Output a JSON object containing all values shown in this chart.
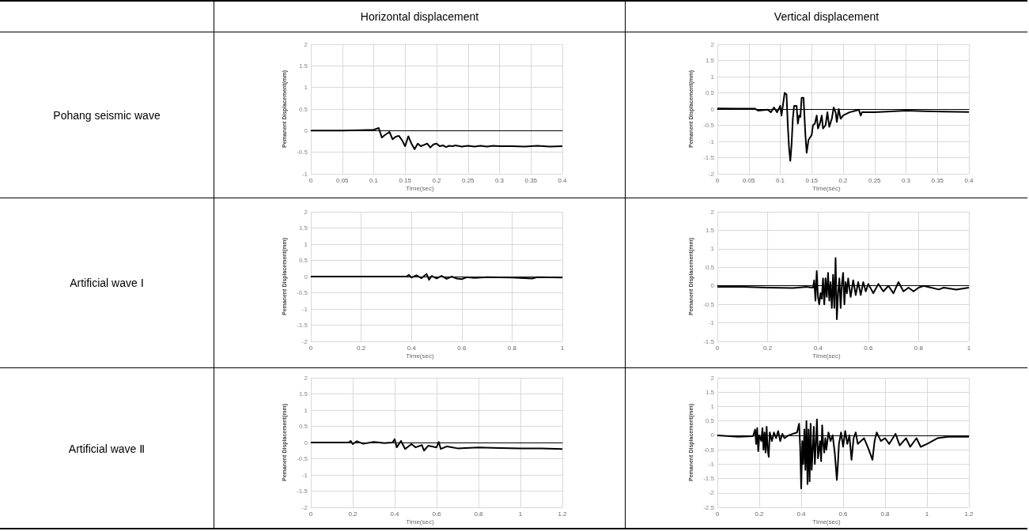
{
  "chart_data": [
    {
      "type": "other",
      "annotations": [
        "Horizontal displacement",
        "Vertical displacement",
        "Pohang seismic wave",
        "Artificial wave Ⅰ",
        "Artificial wave Ⅱ"
      ]
    },
    {
      "type": "line",
      "xlabel": "Time(sec)",
      "ylabel": "Pemanent Displacement(mm)",
      "color": "#000000",
      "grid": true,
      "xlim": [
        0,
        0.4
      ],
      "xticks": [
        0,
        0.05,
        0.1,
        0.15,
        0.2,
        0.25,
        0.3,
        0.35,
        0.4
      ],
      "ylim": [
        -1,
        2
      ],
      "yticks": [
        -1,
        -0.5,
        0,
        0.5,
        1,
        1.5,
        2
      ],
      "x": [
        0,
        0.02,
        0.05,
        0.08,
        0.1,
        0.108,
        0.113,
        0.118,
        0.125,
        0.13,
        0.135,
        0.14,
        0.145,
        0.15,
        0.155,
        0.16,
        0.165,
        0.17,
        0.175,
        0.18,
        0.185,
        0.19,
        0.195,
        0.2,
        0.205,
        0.21,
        0.215,
        0.22,
        0.225,
        0.23,
        0.24,
        0.25,
        0.26,
        0.27,
        0.28,
        0.29,
        0.3,
        0.32,
        0.34,
        0.36,
        0.38,
        0.4
      ],
      "values": [
        0,
        0,
        0,
        0.01,
        0.02,
        0.06,
        -0.16,
        -0.1,
        -0.03,
        -0.2,
        -0.14,
        -0.12,
        -0.22,
        -0.36,
        -0.13,
        -0.3,
        -0.43,
        -0.3,
        -0.36,
        -0.33,
        -0.3,
        -0.39,
        -0.32,
        -0.3,
        -0.36,
        -0.34,
        -0.38,
        -0.35,
        -0.36,
        -0.34,
        -0.37,
        -0.35,
        -0.37,
        -0.35,
        -0.37,
        -0.35,
        -0.36,
        -0.36,
        -0.37,
        -0.35,
        -0.37,
        -0.36
      ]
    },
    {
      "type": "line",
      "xlabel": "Time(sec)",
      "ylabel": "Pemanent Displacement(mm)",
      "color": "#000000",
      "grid": true,
      "xlim": [
        0,
        0.4
      ],
      "xticks": [
        0,
        0.05,
        0.1,
        0.15,
        0.2,
        0.25,
        0.3,
        0.35,
        0.4
      ],
      "ylim": [
        -2,
        2
      ],
      "yticks": [
        -2,
        -1.5,
        -1,
        -0.5,
        0,
        0.5,
        1,
        1.5,
        2
      ],
      "x": [
        0,
        0.03,
        0.06,
        0.065,
        0.08,
        0.085,
        0.09,
        0.095,
        0.1,
        0.102,
        0.107,
        0.11,
        0.112,
        0.114,
        0.116,
        0.118,
        0.12,
        0.122,
        0.126,
        0.128,
        0.13,
        0.132,
        0.134,
        0.137,
        0.14,
        0.142,
        0.145,
        0.15,
        0.152,
        0.155,
        0.158,
        0.16,
        0.163,
        0.166,
        0.168,
        0.172,
        0.175,
        0.178,
        0.182,
        0.185,
        0.188,
        0.19,
        0.193,
        0.196,
        0.2,
        0.205,
        0.21,
        0.22,
        0.225,
        0.228,
        0.23,
        0.25,
        0.27,
        0.3,
        0.33,
        0.36,
        0.4
      ],
      "values": [
        0.02,
        0.01,
        0.01,
        -0.05,
        -0.02,
        -0.1,
        0.05,
        -0.1,
        0.1,
        -0.2,
        0.5,
        0.45,
        -0.5,
        -1.2,
        -1.6,
        -1.1,
        -0.3,
        0.1,
        0.1,
        -0.45,
        -0.2,
        -0.25,
        0.35,
        0.35,
        -0.8,
        -1.35,
        -0.95,
        -0.8,
        -0.5,
        -0.45,
        -0.2,
        -0.6,
        -0.45,
        -0.2,
        -0.6,
        -0.5,
        -0.1,
        -0.55,
        -0.3,
        0.05,
        -0.1,
        -0.4,
        0,
        -0.3,
        -0.2,
        -0.15,
        -0.1,
        -0.05,
        -0.02,
        -0.2,
        -0.1,
        -0.1,
        -0.08,
        -0.05,
        -0.07,
        -0.08,
        -0.09
      ]
    },
    {
      "type": "line",
      "xlabel": "Time(sec)",
      "ylabel": "Pemanent Displacement(mm)",
      "color": "#000000",
      "grid": true,
      "xlim": [
        0,
        1
      ],
      "xticks": [
        0,
        0.2,
        0.4,
        0.6,
        0.8,
        1
      ],
      "ylim": [
        -2,
        2
      ],
      "yticks": [
        -2,
        -1.5,
        -1,
        -0.5,
        0,
        0.5,
        1,
        1.5,
        2
      ],
      "x": [
        0,
        0.1,
        0.2,
        0.3,
        0.38,
        0.39,
        0.4,
        0.42,
        0.44,
        0.46,
        0.47,
        0.48,
        0.5,
        0.52,
        0.54,
        0.56,
        0.58,
        0.6,
        0.62,
        0.65,
        0.7,
        0.8,
        0.88,
        0.9,
        1
      ],
      "values": [
        0,
        0,
        0,
        0,
        0,
        0.05,
        -0.03,
        0.04,
        -0.05,
        0.08,
        -0.1,
        0.02,
        -0.06,
        0.02,
        -0.07,
        0,
        -0.06,
        -0.08,
        -0.02,
        -0.04,
        -0.02,
        -0.03,
        -0.06,
        -0.02,
        -0.03
      ]
    },
    {
      "type": "line",
      "xlabel": "Time(sec)",
      "ylabel": "Pemanent Displacement(mm)",
      "color": "#000000",
      "grid": true,
      "xlim": [
        0,
        1
      ],
      "xticks": [
        0,
        0.2,
        0.4,
        0.6,
        0.8,
        1
      ],
      "ylim": [
        -1.5,
        2
      ],
      "yticks": [
        -1.5,
        -1,
        -0.5,
        0,
        0.5,
        1,
        1.5,
        2
      ],
      "x": [
        0,
        0.1,
        0.2,
        0.3,
        0.35,
        0.38,
        0.385,
        0.39,
        0.395,
        0.4,
        0.405,
        0.41,
        0.415,
        0.42,
        0.425,
        0.43,
        0.435,
        0.44,
        0.445,
        0.45,
        0.455,
        0.46,
        0.465,
        0.47,
        0.475,
        0.48,
        0.485,
        0.49,
        0.495,
        0.5,
        0.505,
        0.51,
        0.515,
        0.52,
        0.53,
        0.54,
        0.55,
        0.56,
        0.57,
        0.58,
        0.59,
        0.6,
        0.62,
        0.64,
        0.66,
        0.68,
        0.7,
        0.72,
        0.74,
        0.76,
        0.78,
        0.8,
        0.82,
        0.85,
        0.88,
        0.9,
        0.95,
        1
      ],
      "values": [
        -0.03,
        -0.03,
        -0.05,
        -0.06,
        -0.03,
        -0.05,
        0.15,
        -0.4,
        0.4,
        -0.3,
        -0.5,
        -0.2,
        -0.35,
        0.2,
        -0.5,
        0.2,
        -0.3,
        0.35,
        -0.4,
        0.1,
        -0.6,
        0.3,
        -0.6,
        0.75,
        -0.9,
        -0.2,
        0.2,
        -0.6,
        0.05,
        0.35,
        -0.5,
        0.1,
        -0.2,
        0.2,
        -0.3,
        0.15,
        -0.25,
        0.1,
        -0.25,
        0.1,
        -0.15,
        0.05,
        -0.2,
        0.05,
        -0.15,
        0,
        -0.2,
        0.1,
        -0.15,
        -0.05,
        -0.15,
        -0.05,
        0,
        -0.05,
        -0.1,
        -0.05,
        -0.1,
        -0.05
      ]
    },
    {
      "type": "line",
      "xlabel": "Time(sec)",
      "ylabel": "Pemanent Displacement(mm)",
      "color": "#000000",
      "grid": true,
      "xlim": [
        0,
        1.2
      ],
      "xticks": [
        0,
        0.2,
        0.4,
        0.6,
        0.8,
        1,
        1.2
      ],
      "ylim": [
        -2,
        2
      ],
      "yticks": [
        -2,
        -1.5,
        -1,
        -0.5,
        0,
        0.5,
        1,
        1.5,
        2
      ],
      "x": [
        0,
        0.1,
        0.18,
        0.19,
        0.2,
        0.22,
        0.25,
        0.3,
        0.35,
        0.39,
        0.4,
        0.41,
        0.43,
        0.45,
        0.48,
        0.5,
        0.53,
        0.54,
        0.56,
        0.6,
        0.61,
        0.62,
        0.65,
        0.7,
        0.8,
        0.9,
        1,
        1.1,
        1.2
      ],
      "values": [
        0,
        0,
        0,
        0.05,
        -0.05,
        0.04,
        -0.04,
        0.02,
        -0.02,
        0,
        0.1,
        -0.15,
        0.05,
        -0.2,
        -0.05,
        -0.15,
        -0.08,
        -0.25,
        -0.1,
        -0.15,
        0.02,
        -0.2,
        -0.12,
        -0.18,
        -0.15,
        -0.17,
        -0.18,
        -0.18,
        -0.2
      ]
    },
    {
      "type": "line",
      "xlabel": "Time(sec)",
      "ylabel": "Pemanent Displacement(mm)",
      "color": "#000000",
      "grid": true,
      "xlim": [
        0,
        1.2
      ],
      "xticks": [
        0,
        0.2,
        0.4,
        0.6,
        0.8,
        1,
        1.2
      ],
      "ylim": [
        -2.5,
        2
      ],
      "yticks": [
        -2.5,
        -2,
        -1.5,
        -1,
        -0.5,
        0,
        0.5,
        1,
        1.5,
        2
      ],
      "x": [
        0,
        0.1,
        0.17,
        0.18,
        0.185,
        0.19,
        0.195,
        0.2,
        0.21,
        0.215,
        0.22,
        0.225,
        0.23,
        0.235,
        0.24,
        0.245,
        0.25,
        0.26,
        0.27,
        0.28,
        0.29,
        0.3,
        0.31,
        0.32,
        0.34,
        0.38,
        0.39,
        0.395,
        0.4,
        0.405,
        0.41,
        0.415,
        0.42,
        0.425,
        0.43,
        0.435,
        0.44,
        0.445,
        0.45,
        0.455,
        0.46,
        0.465,
        0.47,
        0.475,
        0.48,
        0.49,
        0.495,
        0.5,
        0.505,
        0.51,
        0.515,
        0.52,
        0.53,
        0.54,
        0.55,
        0.56,
        0.57,
        0.575,
        0.58,
        0.59,
        0.6,
        0.61,
        0.62,
        0.63,
        0.64,
        0.65,
        0.66,
        0.67,
        0.7,
        0.72,
        0.74,
        0.75,
        0.76,
        0.78,
        0.8,
        0.82,
        0.85,
        0.87,
        0.9,
        0.92,
        0.95,
        0.97,
        1,
        1.05,
        1.1,
        1.2
      ],
      "values": [
        0,
        -0.05,
        -0.03,
        0.2,
        -0.3,
        0.25,
        -0.55,
        0,
        -0.2,
        0.25,
        -0.5,
        0.1,
        -0.6,
        0.3,
        -0.5,
        -0.75,
        0.1,
        -0.2,
        0.1,
        -0.1,
        0.15,
        -0.2,
        0.05,
        -0.1,
        0,
        0.1,
        0.4,
        -0.4,
        -1.85,
        -0.2,
        -1,
        0.2,
        -1.2,
        0.5,
        -1.7,
        0.2,
        -1.6,
        0.4,
        -1.2,
        -0.5,
        0.3,
        -1,
        -0.3,
        0.55,
        -0.8,
        -0.2,
        -0.9,
        0.35,
        -0.3,
        -0.6,
        -0.1,
        -0.5,
        0.1,
        -0.2,
        0,
        -0.6,
        -1.55,
        -1,
        -0.3,
        0.1,
        -0.4,
        0.15,
        -0.3,
        0,
        -0.85,
        -0.1,
        0.1,
        -0.3,
        -0.1,
        -0.45,
        -0.85,
        -0.2,
        0.1,
        -0.2,
        -0.1,
        -0.3,
        0.05,
        -0.35,
        -0.1,
        -0.4,
        -0.1,
        -0.4,
        -0.3,
        -0.1,
        -0.05,
        -0.05
      ]
    }
  ]
}
